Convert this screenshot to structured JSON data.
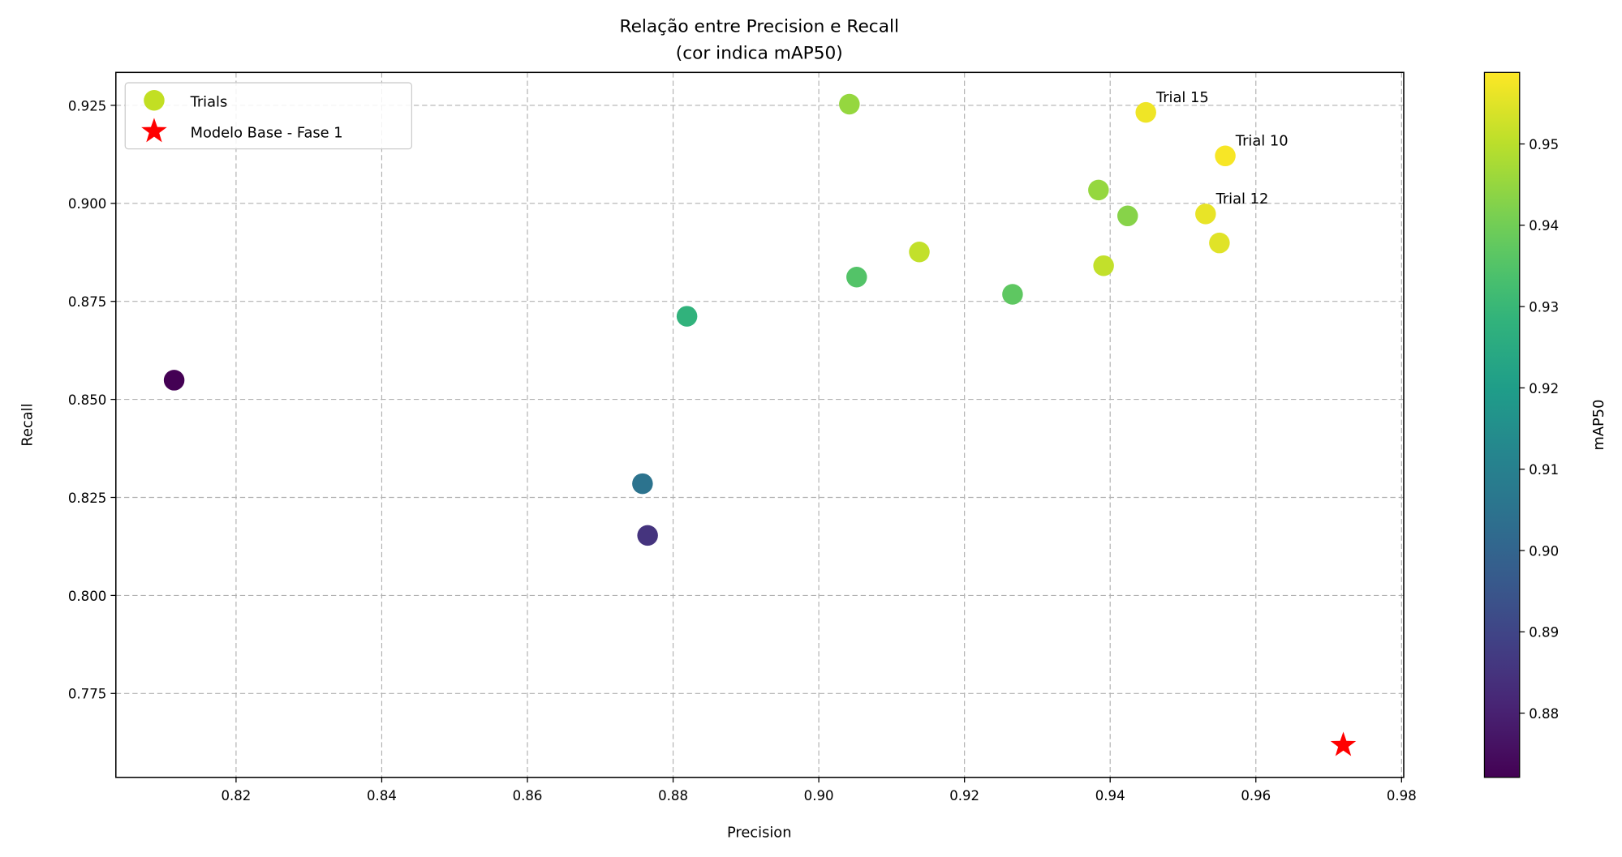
{
  "chart_data": {
    "type": "scatter",
    "title": "Relação entre Precision e Recall",
    "subtitle": "(cor indica mAP50)",
    "xlabel": "Precision",
    "ylabel": "Recall",
    "xlim": [
      0.8035,
      0.9803
    ],
    "ylim": [
      0.7536,
      0.9334
    ],
    "xticks": [
      0.82,
      0.84,
      0.86,
      0.88,
      0.9,
      0.92,
      0.94,
      0.96,
      0.98
    ],
    "xtick_labels": [
      "0.82",
      "0.84",
      "0.86",
      "0.88",
      "0.90",
      "0.92",
      "0.94",
      "0.96",
      "0.98"
    ],
    "yticks": [
      0.775,
      0.8,
      0.825,
      0.85,
      0.875,
      0.9,
      0.925
    ],
    "ytick_labels": [
      "0.775",
      "0.800",
      "0.825",
      "0.850",
      "0.875",
      "0.900",
      "0.925"
    ],
    "grid": true,
    "legend": {
      "placement": "top-left",
      "entries": [
        "Trials",
        "Modelo Base - Fase 1"
      ]
    },
    "colorbar": {
      "label": "mAP50",
      "colormap": "viridis",
      "range": [
        0.8721,
        0.9588
      ],
      "ticks": [
        0.88,
        0.89,
        0.9,
        0.91,
        0.92,
        0.93,
        0.94,
        0.95
      ],
      "tick_labels": [
        "0.88",
        "0.89",
        "0.90",
        "0.91",
        "0.92",
        "0.93",
        "0.94",
        "0.95"
      ]
    },
    "series": [
      {
        "name": "Trials",
        "points": [
          {
            "x": 0.8115,
            "y": 0.8549,
            "c": 0.872
          },
          {
            "x": 0.8758,
            "y": 0.8285,
            "c": 0.905
          },
          {
            "x": 0.8765,
            "y": 0.8153,
            "c": 0.885
          },
          {
            "x": 0.8819,
            "y": 0.8712,
            "c": 0.928
          },
          {
            "x": 0.9042,
            "y": 0.9253,
            "c": 0.945
          },
          {
            "x": 0.9052,
            "y": 0.8812,
            "c": 0.935
          },
          {
            "x": 0.9138,
            "y": 0.8876,
            "c": 0.951
          },
          {
            "x": 0.9266,
            "y": 0.8768,
            "c": 0.937
          },
          {
            "x": 0.9384,
            "y": 0.9034,
            "c": 0.945
          },
          {
            "x": 0.9391,
            "y": 0.8841,
            "c": 0.951
          },
          {
            "x": 0.9424,
            "y": 0.8968,
            "c": 0.943
          },
          {
            "x": 0.9449,
            "y": 0.9232,
            "c": 0.957,
            "label": "Trial 15"
          },
          {
            "x": 0.9531,
            "y": 0.8973,
            "c": 0.956,
            "label": "Trial 12"
          },
          {
            "x": 0.955,
            "y": 0.8899,
            "c": 0.955
          },
          {
            "x": 0.9558,
            "y": 0.9121,
            "c": 0.958,
            "label": "Trial 10"
          }
        ]
      },
      {
        "name": "Modelo Base - Fase 1",
        "marker": "star",
        "color": "#ff0000",
        "points": [
          {
            "x": 0.972,
            "y": 0.7618
          }
        ]
      }
    ]
  }
}
